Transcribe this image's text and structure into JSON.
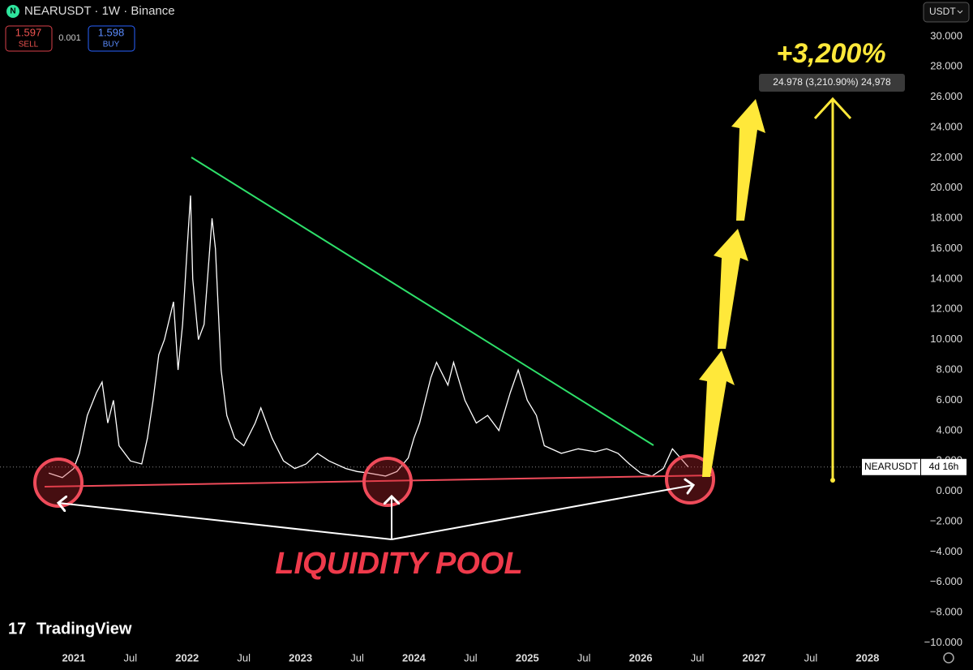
{
  "header": {
    "symbol": "NEARUSDT · 1W · Binance"
  },
  "order_panel": {
    "sell_price": "1.597",
    "sell_label": "SELL",
    "spread": "0.001",
    "buy_price": "1.598",
    "buy_label": "BUY"
  },
  "currency": "USDT",
  "logo": "TradingView",
  "annotations": {
    "gain": "+3,200%",
    "measure": "24.978 (3,210.90%) 24,978",
    "liquidity": "LIQUIDITY POOL"
  },
  "countdown": "4d 16h",
  "chart_data": {
    "type": "line",
    "x": [
      2020.78,
      2020.9,
      2021.0,
      2021.05,
      2021.12,
      2021.2,
      2021.25,
      2021.3,
      2021.35,
      2021.4,
      2021.5,
      2021.6,
      2021.65,
      2021.7,
      2021.75,
      2021.8,
      2021.88,
      2021.92,
      2021.96,
      2022.0,
      2022.03,
      2022.05,
      2022.1,
      2022.15,
      2022.22,
      2022.25,
      2022.3,
      2022.35,
      2022.42,
      2022.5,
      2022.6,
      2022.65,
      2022.75,
      2022.85,
      2022.95,
      2023.05,
      2023.15,
      2023.25,
      2023.4,
      2023.5,
      2023.6,
      2023.75,
      2023.85,
      2023.95,
      2024.0,
      2024.05,
      2024.15,
      2024.2,
      2024.3,
      2024.35,
      2024.45,
      2024.55,
      2024.65,
      2024.75,
      2024.85,
      2024.92,
      2025.0,
      2025.08,
      2025.15,
      2025.3,
      2025.45,
      2025.6,
      2025.7,
      2025.8,
      2025.9,
      2026.0,
      2026.1,
      2026.2,
      2026.28,
      2026.35,
      2026.42
    ],
    "series": [
      {
        "name": "NEARUSDT",
        "color": "#ffffff",
        "values": [
          1.2,
          0.9,
          1.5,
          2.5,
          5,
          6.5,
          7.2,
          4.5,
          6,
          3,
          2,
          1.8,
          3.5,
          6,
          9,
          10,
          12.5,
          8,
          11,
          16,
          19.5,
          14,
          10,
          11,
          18,
          16,
          8,
          5,
          3.5,
          3,
          4.5,
          5.5,
          3.5,
          2,
          1.5,
          1.8,
          2.5,
          2,
          1.5,
          1.3,
          1.2,
          1.0,
          1.3,
          2.2,
          3.5,
          4.5,
          7.5,
          8.5,
          7,
          8.5,
          6,
          4.5,
          5,
          4,
          6.5,
          8,
          6,
          5,
          3,
          2.5,
          2.8,
          2.6,
          2.8,
          2.5,
          1.8,
          1.2,
          1.0,
          1.5,
          2.8,
          2.2,
          1.6
        ]
      }
    ],
    "last_price": 1.597,
    "xlim": [
      2020.35,
      2028.43
    ],
    "ylim": [
      -10.4,
      32.4
    ],
    "xticks": [
      2021,
      {
        "value": 2021.5,
        "label": "Jul"
      },
      2022,
      {
        "value": 2022.5,
        "label": "Jul"
      },
      2023,
      {
        "value": 2023.5,
        "label": "Jul"
      },
      2024,
      {
        "value": 2024.5,
        "label": "Jul"
      },
      2025,
      {
        "value": 2025.5,
        "label": "Jul"
      },
      2026,
      {
        "value": 2026.5,
        "label": "Jul"
      },
      2027,
      {
        "value": 2027.5,
        "label": "Jul"
      },
      2028
    ],
    "yticks": [
      {
        "value": 30,
        "label": "30.000"
      },
      {
        "value": 28,
        "label": "28.000"
      },
      {
        "value": 26,
        "label": "26.000"
      },
      {
        "value": 24,
        "label": "24.000"
      },
      {
        "value": 22,
        "label": "22.000"
      },
      {
        "value": 20,
        "label": "20.000"
      },
      {
        "value": 18,
        "label": "18.000"
      },
      {
        "value": 16,
        "label": "16.000"
      },
      {
        "value": 14,
        "label": "14.000"
      },
      {
        "value": 12,
        "label": "12.000"
      },
      {
        "value": 10,
        "label": "10.000"
      },
      {
        "value": 8,
        "label": "8.000"
      },
      {
        "value": 6,
        "label": "6.000"
      },
      {
        "value": 4,
        "label": "4.000"
      },
      {
        "value": 2,
        "label": "2.000"
      },
      {
        "value": 0,
        "label": "0.000"
      },
      {
        "value": -2,
        "label": "−2.000"
      },
      {
        "value": -4,
        "label": "−4.000"
      },
      {
        "value": -6,
        "label": "−6.000"
      },
      {
        "value": -8,
        "label": "−8.000"
      },
      {
        "value": -10,
        "label": "−10.000"
      }
    ]
  }
}
